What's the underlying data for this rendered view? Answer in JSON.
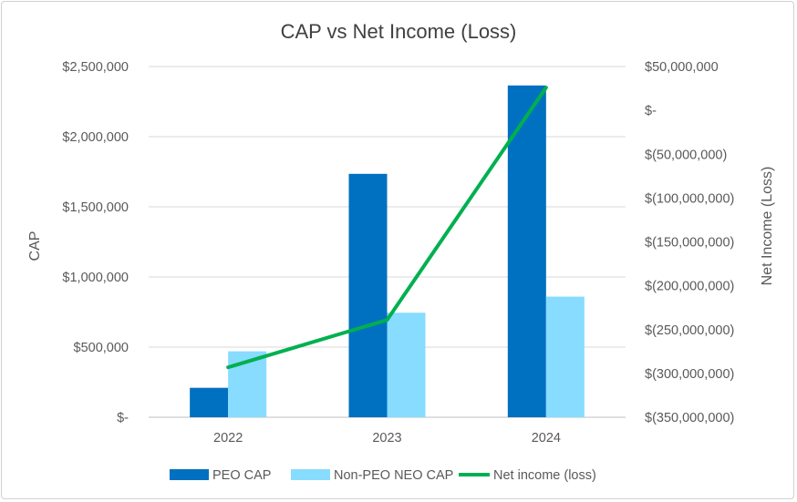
{
  "chart_data": {
    "type": "bar",
    "title": "CAP vs Net Income (Loss)",
    "categories": [
      "2022",
      "2023",
      "2024"
    ],
    "ylabel": "CAP",
    "y2label": "Net Income (Loss)",
    "ylim": [
      0,
      2500000
    ],
    "y2lim": [
      -350000000,
      50000000
    ],
    "yticks": [
      "$-",
      "$500,000",
      "$1,000,000",
      "$1,500,000",
      "$2,000,000",
      "$2,500,000"
    ],
    "y2ticks": [
      "$(350,000,000)",
      "$(300,000,000)",
      "$(250,000,000)",
      "$(200,000,000)",
      "$(150,000,000)",
      "$(100,000,000)",
      "$(50,000,000)",
      "$-",
      "$50,000,000"
    ],
    "series": [
      {
        "name": "PEO CAP",
        "type": "bar",
        "axis": "left",
        "color": "#0070C0",
        "values": [
          210000,
          1735000,
          2365000
        ]
      },
      {
        "name": "Non-PEO NEO CAP",
        "type": "bar",
        "axis": "left",
        "color": "#87DCFF",
        "values": [
          470000,
          745000,
          860000
        ]
      },
      {
        "name": "Net income (loss)",
        "type": "line",
        "axis": "right",
        "color": "#00B050",
        "values": [
          -293000000,
          -239000000,
          26000000
        ]
      }
    ],
    "legend": "bottom",
    "grid": true
  }
}
